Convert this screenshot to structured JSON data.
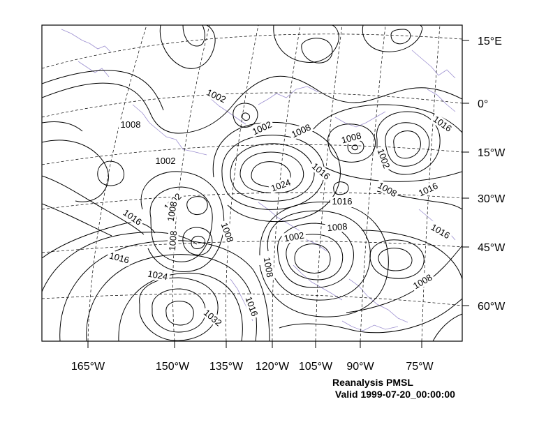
{
  "map": {
    "latitude_labels": [
      "15°E",
      "0°",
      "15°W",
      "30°W",
      "45°W",
      "60°W"
    ],
    "longitude_labels": [
      "165°W",
      "150°W",
      "135°W",
      "120°W",
      "105°W",
      "90°W",
      "75°W"
    ],
    "contour_labels": [
      "1002",
      "1008",
      "1002",
      "1002",
      "1008",
      "1008",
      "1002",
      "1016",
      "1024",
      "1016",
      "1016",
      "1008",
      "1016",
      "1002",
      "1016",
      "1008",
      "1008",
      "1008",
      "1002",
      "1008",
      "1016",
      "1024",
      "1008",
      "1016",
      "1032",
      "1008",
      "1016"
    ],
    "colors": {
      "contours": "#000000",
      "graticule": "#000000",
      "coastline": "#9c8fd0"
    }
  },
  "caption": {
    "line1": "Reanalysis PMSL",
    "line2": " Valid 1999-07-20_00:00:00"
  }
}
